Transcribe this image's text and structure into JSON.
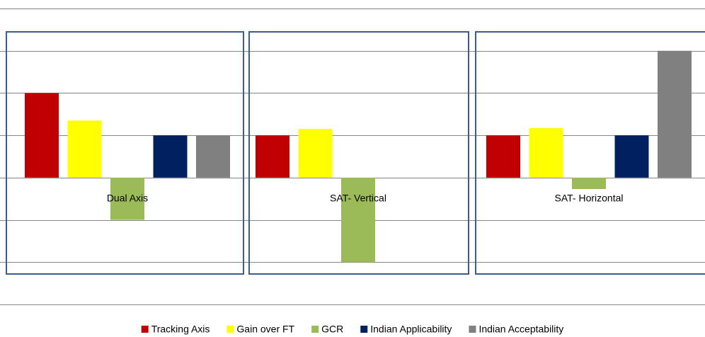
{
  "chart_data": {
    "type": "bar",
    "categories": [
      "Dual Axis",
      "SAT- Vertical",
      "SAT- Horizontal"
    ],
    "series": [
      {
        "name": "Tracking Axis",
        "color": "#c00000",
        "values": [
          2,
          1,
          1
        ]
      },
      {
        "name": "Gain over FT",
        "color": "#ffff00",
        "values": [
          1.35,
          1.15,
          1.17
        ]
      },
      {
        "name": "GCR",
        "color": "#9bbb59",
        "values": [
          -1,
          -2,
          -0.27
        ]
      },
      {
        "name": "Indian Applicability",
        "color": "#002060",
        "values": [
          1,
          0,
          1
        ]
      },
      {
        "name": "Indian Acceptability",
        "color": "#808080",
        "values": [
          1,
          0,
          3
        ]
      }
    ],
    "ylim": [
      -3,
      4
    ],
    "yticks": [
      -3,
      -2,
      -1,
      0,
      1,
      2,
      3,
      4
    ],
    "grid": true,
    "legend": "bottom"
  }
}
